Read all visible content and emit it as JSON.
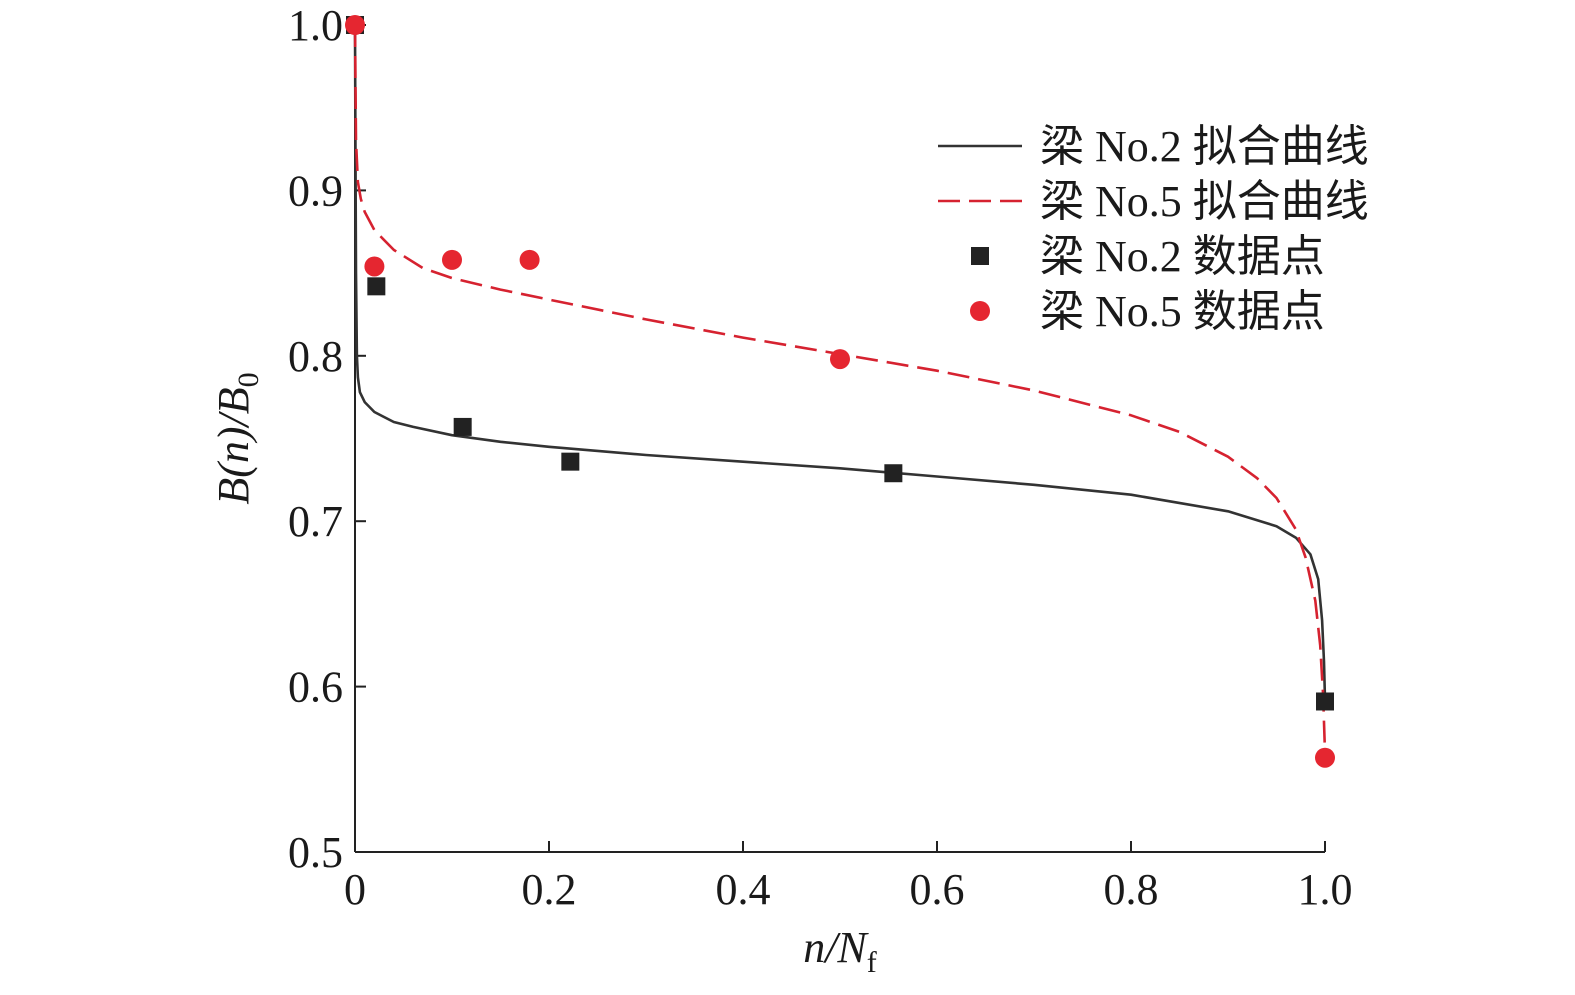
{
  "chart_data": {
    "type": "line",
    "title": "",
    "xlabel": {
      "main": "n/N",
      "sub": "f"
    },
    "ylabel": {
      "main_a": "B(n)/B",
      "sub": "0"
    },
    "xlim": [
      0,
      1.0
    ],
    "ylim": [
      0.5,
      1.0
    ],
    "x_ticks": [
      0,
      0.2,
      0.4,
      0.6,
      0.8,
      1.0
    ],
    "x_tick_labels": [
      "0",
      "0.2",
      "0.4",
      "0.6",
      "0.8",
      "1.0"
    ],
    "y_ticks": [
      0.5,
      0.6,
      0.7,
      0.8,
      0.9,
      1.0
    ],
    "y_tick_labels": [
      "0.5",
      "0.6",
      "0.7",
      "0.8",
      "0.9",
      "1.0"
    ],
    "legend_position": "top-right",
    "series": [
      {
        "name": "梁 No.2 拟合曲线",
        "kind": "line",
        "style": "solid",
        "color": "#333333",
        "x": [
          0,
          0.0005,
          0.001,
          0.002,
          0.003,
          0.005,
          0.01,
          0.02,
          0.04,
          0.06,
          0.1,
          0.15,
          0.2,
          0.3,
          0.4,
          0.5,
          0.6,
          0.7,
          0.8,
          0.9,
          0.95,
          0.97,
          0.985,
          0.993,
          0.997,
          0.999,
          1.0
        ],
        "y": [
          1.0,
          0.92,
          0.85,
          0.8,
          0.787,
          0.778,
          0.772,
          0.766,
          0.76,
          0.757,
          0.752,
          0.748,
          0.745,
          0.74,
          0.736,
          0.732,
          0.727,
          0.722,
          0.716,
          0.706,
          0.697,
          0.69,
          0.68,
          0.665,
          0.64,
          0.615,
          0.592
        ]
      },
      {
        "name": "梁 No.5 拟合曲线",
        "kind": "line",
        "style": "dashed",
        "color": "#d62230",
        "x": [
          0,
          0.001,
          0.003,
          0.006,
          0.01,
          0.02,
          0.04,
          0.07,
          0.1,
          0.15,
          0.2,
          0.3,
          0.4,
          0.5,
          0.6,
          0.7,
          0.8,
          0.85,
          0.9,
          0.93,
          0.95,
          0.97,
          0.98,
          0.99,
          0.995,
          0.998,
          1.0
        ],
        "y": [
          1.0,
          0.93,
          0.905,
          0.895,
          0.887,
          0.876,
          0.864,
          0.853,
          0.847,
          0.84,
          0.834,
          0.822,
          0.811,
          0.801,
          0.791,
          0.779,
          0.764,
          0.754,
          0.739,
          0.726,
          0.714,
          0.695,
          0.678,
          0.652,
          0.625,
          0.595,
          0.56
        ]
      },
      {
        "name": "梁 No.2 数据点",
        "kind": "marker",
        "marker": "square",
        "color": "#222222",
        "x": [
          0,
          0.022,
          0.111,
          0.222,
          0.555,
          1.0
        ],
        "y": [
          1.0,
          0.842,
          0.757,
          0.736,
          0.729,
          0.591
        ]
      },
      {
        "name": "梁 No.5 数据点",
        "kind": "marker",
        "marker": "circle",
        "color": "#e52630",
        "x": [
          0,
          0.02,
          0.1,
          0.18,
          0.5,
          1.0
        ],
        "y": [
          1.0,
          0.854,
          0.858,
          0.858,
          0.798,
          0.557
        ]
      }
    ]
  }
}
